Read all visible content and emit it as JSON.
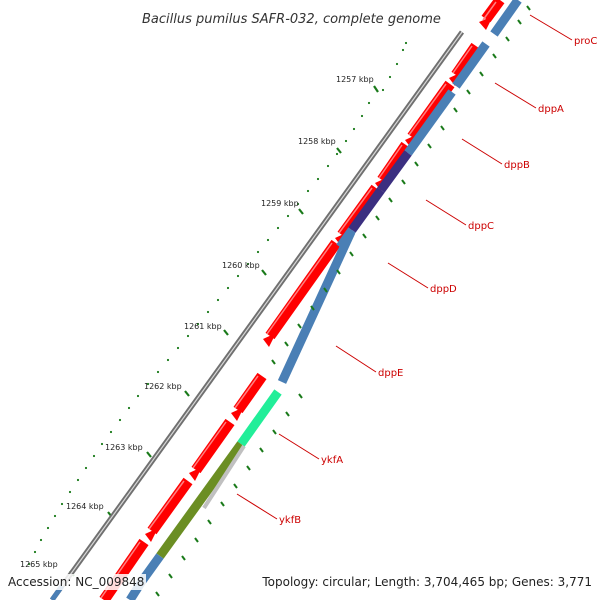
{
  "title": "Bacillus pumilus SAFR-032, complete genome",
  "footer": {
    "accession": "Accession: NC_009848",
    "topology": "Topology: circular; Length: 3,704,465 bp; Genes: 3,771"
  },
  "kbp_labels": [
    "1257 kbp",
    "1258 kbp",
    "1259 kbp",
    "1260 kbp",
    "1261 kbp",
    "1262 kbp",
    "1263 kbp",
    "1264 kbp",
    "1265 kbp"
  ],
  "genes": [
    "proC",
    "dppA",
    "dppB",
    "dppC",
    "dppD",
    "dppE",
    "ykfA",
    "ykfB"
  ],
  "colors": {
    "forward": "#ff0000",
    "reverse": "#4a7fb5",
    "backbone": "#888888",
    "tick": "#1a7a1a",
    "label": "#cc0000",
    "dppC": "#3b2f80",
    "ykfA": "#22ee99",
    "ykfB_outer": "#6b8e23",
    "ykfB_inner": "#c0c0c0"
  }
}
